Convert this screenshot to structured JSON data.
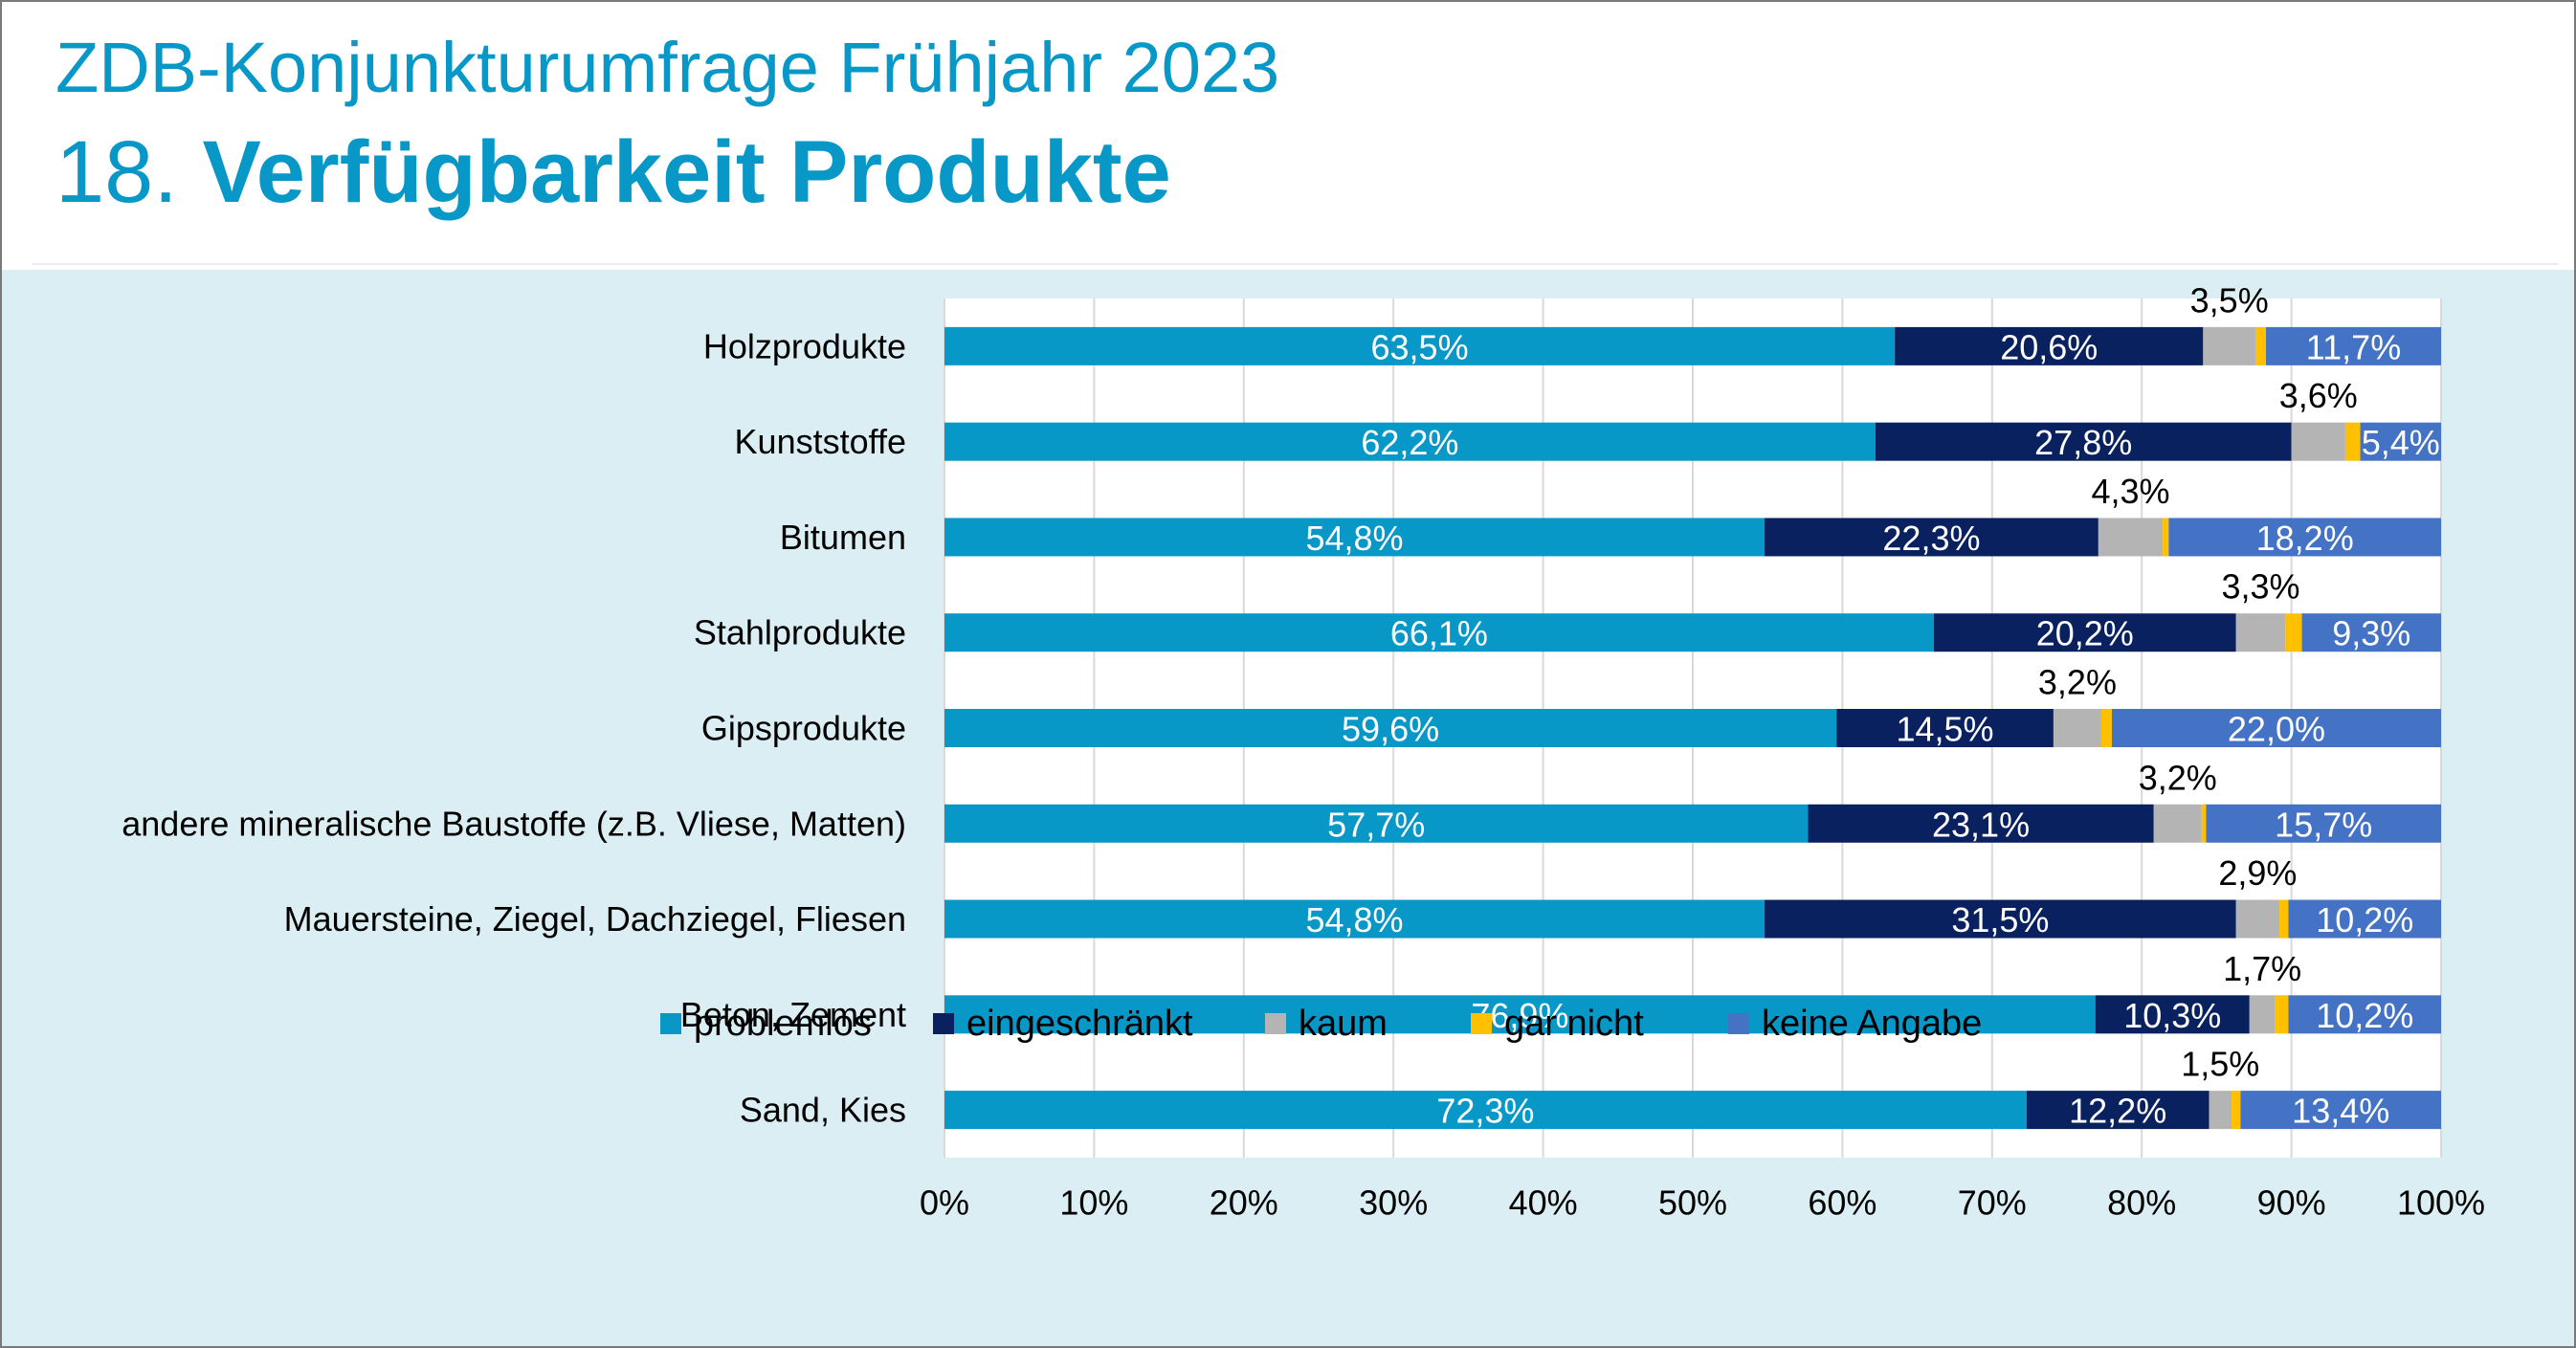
{
  "header": {
    "subtitle": "ZDB-Konjunkturumfrage Frühjahr 2023",
    "title_number": "18.",
    "title_text": "Verfügbarkeit Produkte"
  },
  "colors": {
    "accent": "#0898c8",
    "problemlos": "#0898c8",
    "eingeschraenkt": "#0a2160",
    "kaum": "#b4b4b4",
    "gar_nicht": "#ffc000",
    "keine_angabe": "#4472c4",
    "panel_bg": "#daeef3",
    "plot_bg": "#ffffff"
  },
  "chart_data": {
    "type": "bar",
    "orientation": "horizontal",
    "stacked": "100%",
    "title": "",
    "xlabel": "",
    "ylabel": "",
    "xlim": [
      0,
      100
    ],
    "x_ticks": [
      "0%",
      "10%",
      "20%",
      "30%",
      "40%",
      "50%",
      "60%",
      "70%",
      "80%",
      "90%",
      "100%"
    ],
    "grid": "vertical",
    "legend_position": "bottom",
    "categories": [
      "Holzprodukte",
      "Kunststoffe",
      "Bitumen",
      "Stahlprodukte",
      "Gipsprodukte",
      "andere mineralische Baustoffe (z.B. Vliese, Matten)",
      "Mauersteine, Ziegel, Dachziegel, Fliesen",
      "Beton, Zement",
      "Sand, Kies"
    ],
    "series": [
      {
        "name": "problemlos",
        "color": "#0898c8",
        "label_color": "#ffffff",
        "values": [
          63.5,
          62.2,
          54.8,
          66.1,
          59.6,
          57.7,
          54.8,
          76.9,
          72.3
        ],
        "labels": [
          "63,5%",
          "62,2%",
          "54,8%",
          "66,1%",
          "59,6%",
          "57,7%",
          "54,8%",
          "76,9%",
          "72,3%"
        ]
      },
      {
        "name": "eingeschränkt",
        "color": "#0a2160",
        "label_color": "#ffffff",
        "values": [
          20.6,
          27.8,
          22.3,
          20.2,
          14.5,
          23.1,
          31.5,
          10.3,
          12.2
        ],
        "labels": [
          "20,6%",
          "27,8%",
          "22,3%",
          "20,2%",
          "14,5%",
          "23,1%",
          "31,5%",
          "10,3%",
          "12,2%"
        ]
      },
      {
        "name": "kaum",
        "color": "#b4b4b4",
        "label_color": "#000000",
        "label_above": true,
        "values": [
          3.5,
          3.6,
          4.3,
          3.3,
          3.2,
          3.2,
          2.9,
          1.7,
          1.5
        ],
        "labels": [
          "3,5%",
          "3,6%",
          "4,3%",
          "3,3%",
          "3,2%",
          "3,2%",
          "2,9%",
          "1,7%",
          "1,5%"
        ]
      },
      {
        "name": "gar nicht",
        "color": "#ffc000",
        "label_color": "#000000",
        "values": [
          0.7,
          1.0,
          0.4,
          1.1,
          0.7,
          0.3,
          0.6,
          0.9,
          0.6
        ],
        "labels": []
      },
      {
        "name": "keine Angabe",
        "color": "#4472c4",
        "label_color": "#ffffff",
        "values": [
          11.7,
          5.4,
          18.2,
          9.3,
          22.0,
          15.7,
          10.2,
          10.2,
          13.4
        ],
        "labels": [
          "11,7%",
          "5,4%",
          "18,2%",
          "9,3%",
          "22,0%",
          "15,7%",
          "10,2%",
          "10,2%",
          "13,4%"
        ]
      }
    ]
  }
}
